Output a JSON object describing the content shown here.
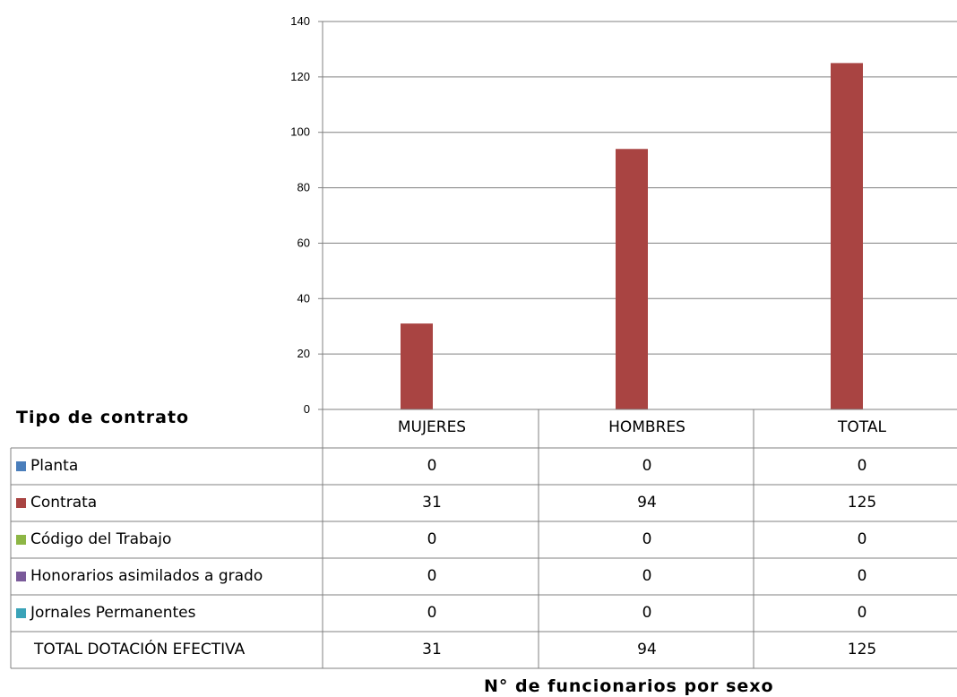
{
  "chart_data": {
    "type": "bar",
    "categories": [
      "MUJERES",
      "HOMBRES",
      "TOTAL"
    ],
    "series": [
      {
        "name": "Planta",
        "values": [
          0,
          0,
          0
        ],
        "color": "#4a7ebb"
      },
      {
        "name": "Contrata",
        "values": [
          31,
          94,
          125
        ],
        "color": "#a94442"
      },
      {
        "name": "Código del Trabajo",
        "values": [
          0,
          0,
          0
        ],
        "color": "#8db645"
      },
      {
        "name": "Honorarios asimilados a grado",
        "values": [
          0,
          0,
          0
        ],
        "color": "#7a5a9a"
      },
      {
        "name": "Jornales Permanentes",
        "values": [
          0,
          0,
          0
        ],
        "color": "#3aa3b8"
      }
    ],
    "total_row": {
      "label": "TOTAL DOTACIÓN EFECTIVA",
      "values": [
        31,
        94,
        125
      ]
    },
    "y_ticks": [
      "0",
      "20",
      "40",
      "60",
      "80",
      "100",
      "120",
      "140"
    ],
    "ylim": [
      0,
      140
    ],
    "grid": true,
    "title": "Tipo de contrato",
    "xlabel": "N° de funcionarios por sexo"
  }
}
